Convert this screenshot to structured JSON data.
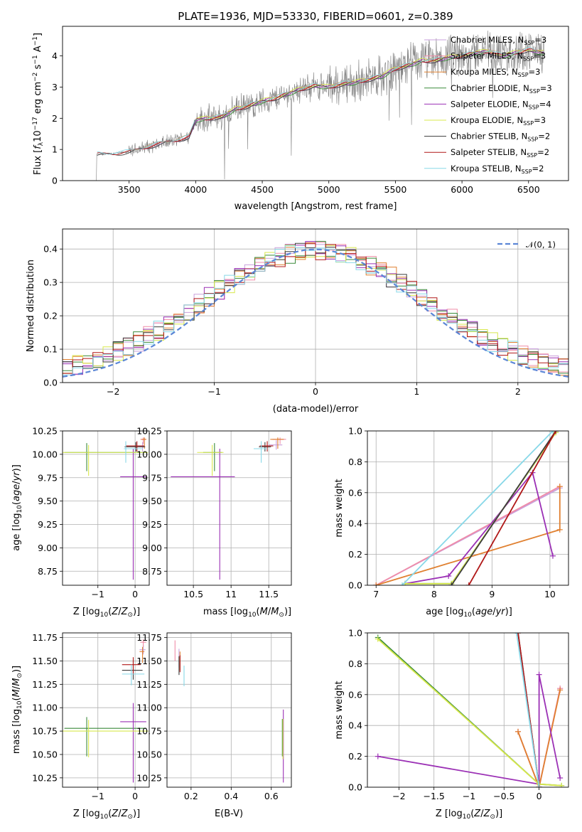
{
  "colors": {
    "Chabrier MILES": "#c9a0dc",
    "Salpeter MILES": "#f08ca8",
    "Kroupa MILES": "#e08030",
    "Chabrier ELODIE": "#3a8a3a",
    "Salpeter ELODIE": "#9b30b5",
    "Kroupa ELODIE": "#d8e84c",
    "Chabrier STELIB": "#3c3c3c",
    "Salpeter STELIB": "#b01818",
    "Kroupa STELIB": "#88d8e8",
    "normal": "#5b86d6",
    "grid": "#b0b0b0"
  },
  "chart_data": [
    {
      "id": "spectrum",
      "type": "line",
      "title": "PLATE=1936, MJD=53330, FIBERID=0601, z=0.389",
      "xlabel": "wavelength [Angstrom, rest frame]",
      "ylabel": "Flux [f_λ10^-17 erg cm^-2 s^-1 A^-1]",
      "xlim": [
        3000,
        6800
      ],
      "ylim": [
        0,
        4.95
      ],
      "xticks": [
        3500,
        4000,
        4500,
        5000,
        5500,
        6000,
        6500
      ],
      "yticks": [
        0,
        1,
        2,
        3,
        4
      ],
      "grid": false,
      "legend_position": "top-right",
      "legend": [
        {
          "name": "Chabrier MILES",
          "text": "Chabrier MILES, N",
          "sub": "SSP",
          "suffix": "=3"
        },
        {
          "name": "Salpeter MILES",
          "text": "Salpeter MILES, N",
          "sub": "SSP",
          "suffix": "=3"
        },
        {
          "name": "Kroupa MILES",
          "text": "Kroupa MILES, N",
          "sub": "SSP",
          "suffix": "=3"
        },
        {
          "name": "Chabrier ELODIE",
          "text": "Chabrier ELODIE, N",
          "sub": "SSP",
          "suffix": "=3"
        },
        {
          "name": "Salpeter ELODIE",
          "text": "Salpeter ELODIE, N",
          "sub": "SSP",
          "suffix": "=4"
        },
        {
          "name": "Kroupa ELODIE",
          "text": "Kroupa ELODIE, N",
          "sub": "SSP",
          "suffix": "=3"
        },
        {
          "name": "Chabrier STELIB",
          "text": "Chabrier STELIB, N",
          "sub": "SSP",
          "suffix": "=2"
        },
        {
          "name": "Salpeter STELIB",
          "text": "Salpeter STELIB, N",
          "sub": "SSP",
          "suffix": "=2"
        },
        {
          "name": "Kroupa STELIB",
          "text": "Kroupa STELIB, N",
          "sub": "SSP",
          "suffix": "=2"
        }
      ],
      "continuum": {
        "x": [
          3200,
          3250,
          3300,
          3400,
          3500,
          3600,
          3700,
          3800,
          3900,
          3950,
          4000,
          4100,
          4200,
          4300,
          4400,
          4500,
          4600,
          4700,
          4800,
          4900,
          5000,
          5100,
          5200,
          5300,
          5400,
          5500,
          5600,
          5700,
          5800,
          5900,
          6000,
          6100,
          6200,
          6300,
          6400,
          6500,
          6600
        ],
        "y": [
          0.85,
          0.85,
          0.85,
          0.88,
          0.92,
          1.05,
          1.15,
          1.25,
          1.35,
          1.4,
          1.95,
          2.0,
          2.05,
          2.3,
          2.4,
          2.55,
          2.65,
          2.8,
          2.95,
          3.05,
          3.0,
          3.1,
          3.15,
          3.25,
          3.35,
          3.6,
          3.7,
          3.85,
          3.85,
          3.95,
          4.0,
          4.1,
          4.15,
          4.0,
          4.1,
          4.2,
          4.1
        ]
      }
    },
    {
      "id": "residuals",
      "type": "line",
      "xlabel": "(data-model)/error",
      "ylabel": "Normed distribution",
      "xlim": [
        -2.5,
        2.5
      ],
      "ylim": [
        0,
        0.46
      ],
      "xticks": [
        -2,
        -1,
        0,
        1,
        2
      ],
      "yticks": [
        0.0,
        0.1,
        0.2,
        0.3,
        0.4
      ],
      "grid": true,
      "legend_position": "top-right",
      "legend": [
        {
          "name": "normal",
          "text": "𝒩(0, 1)"
        }
      ],
      "bin_width": 0.1
    },
    {
      "id": "age-vs-Z",
      "type": "scatter",
      "xlabel": "Z [log10(Z/Z⊙)]",
      "ylabel": "age  [log10(age/yr)]",
      "xlim": [
        -1.95,
        0.38
      ],
      "ylim": [
        8.6,
        10.25
      ],
      "xticks": [
        -1,
        0
      ],
      "yticks": [
        8.75,
        9.0,
        9.25,
        9.5,
        9.75,
        10.0,
        10.25
      ],
      "grid": true,
      "points": [
        {
          "model": "Chabrier MILES",
          "x": 0.2,
          "y": 10.08,
          "xerr": [
            0.1,
            0.05
          ],
          "yerr": [
            0.05,
            0.05
          ]
        },
        {
          "model": "Salpeter MILES",
          "x": 0.22,
          "y": 10.16,
          "xerr": [
            0.08,
            0.08
          ],
          "yerr": [
            0.05,
            0.02
          ]
        },
        {
          "model": "Kroupa MILES",
          "x": 0.25,
          "y": 10.16,
          "xerr": [
            0.08,
            0.05
          ],
          "yerr": [
            0.1,
            0.02
          ]
        },
        {
          "model": "Chabrier ELODIE",
          "x": -1.3,
          "y": 10.02,
          "xerr": [
            0.6,
            1.6
          ],
          "yerr": [
            0.2,
            0.1
          ]
        },
        {
          "model": "Salpeter ELODIE",
          "x": -0.05,
          "y": 9.76,
          "xerr": [
            0.35,
            0.35
          ],
          "yerr": [
            1.1,
            0.3
          ]
        },
        {
          "model": "Kroupa ELODIE",
          "x": -1.25,
          "y": 10.02,
          "xerr": [
            0.7,
            1.6
          ],
          "yerr": [
            0.25,
            0.08
          ]
        },
        {
          "model": "Chabrier STELIB",
          "x": 0.02,
          "y": 10.08,
          "xerr": [
            0.3,
            0.25
          ],
          "yerr": [
            0.05,
            0.05
          ]
        },
        {
          "model": "Salpeter STELIB",
          "x": 0.05,
          "y": 10.09,
          "xerr": [
            0.3,
            0.2
          ],
          "yerr": [
            0.06,
            0.05
          ]
        },
        {
          "model": "Kroupa STELIB",
          "x": -0.25,
          "y": 10.06,
          "xerr": [
            0.05,
            0.45
          ],
          "yerr": [
            0.15,
            0.08
          ]
        }
      ]
    },
    {
      "id": "age-vs-mass",
      "type": "scatter",
      "xlabel": "mass [log10(M/M⊙)]",
      "ylabel": "",
      "xlim": [
        10.15,
        11.8
      ],
      "ylim": [
        8.6,
        10.25
      ],
      "xticks": [
        10.5,
        11.0,
        11.5
      ],
      "yticks": [
        8.75,
        9.0,
        9.25,
        9.5,
        9.75,
        10.0,
        10.25
      ],
      "grid": true,
      "points": [
        {
          "model": "Chabrier MILES",
          "x": 11.6,
          "y": 10.1,
          "xerr": [
            0.1,
            0.08
          ],
          "yerr": [
            0.05,
            0.05
          ]
        },
        {
          "model": "Salpeter MILES",
          "x": 11.65,
          "y": 10.16,
          "xerr": [
            0.1,
            0.08
          ],
          "yerr": [
            0.05,
            0.02
          ]
        },
        {
          "model": "Kroupa MILES",
          "x": 11.62,
          "y": 10.16,
          "xerr": [
            0.1,
            0.08
          ],
          "yerr": [
            0.1,
            0.02
          ]
        },
        {
          "model": "Chabrier ELODIE",
          "x": 10.78,
          "y": 10.02,
          "xerr": [
            0.15,
            0.1
          ],
          "yerr": [
            0.2,
            0.1
          ]
        },
        {
          "model": "Salpeter ELODIE",
          "x": 10.85,
          "y": 9.76,
          "xerr": [
            0.65,
            0.2
          ],
          "yerr": [
            1.1,
            0.3
          ]
        },
        {
          "model": "Kroupa ELODIE",
          "x": 10.75,
          "y": 10.02,
          "xerr": [
            0.2,
            0.15
          ],
          "yerr": [
            0.25,
            0.08
          ]
        },
        {
          "model": "Chabrier STELIB",
          "x": 11.45,
          "y": 10.08,
          "xerr": [
            0.08,
            0.08
          ],
          "yerr": [
            0.05,
            0.05
          ]
        },
        {
          "model": "Salpeter STELIB",
          "x": 11.48,
          "y": 10.09,
          "xerr": [
            0.1,
            0.08
          ],
          "yerr": [
            0.06,
            0.05
          ]
        },
        {
          "model": "Kroupa STELIB",
          "x": 11.4,
          "y": 10.06,
          "xerr": [
            0.1,
            0.08
          ],
          "yerr": [
            0.15,
            0.08
          ]
        }
      ]
    },
    {
      "id": "weight-vs-age",
      "type": "line",
      "xlabel": "age  [log10(age/yr)]",
      "ylabel": "mass weight",
      "xlim": [
        6.85,
        10.32
      ],
      "ylim": [
        0,
        1.0
      ],
      "xticks": [
        7,
        8,
        9,
        10
      ],
      "yticks": [
        0.0,
        0.2,
        0.4,
        0.6,
        0.8,
        1.0
      ],
      "grid": true,
      "series": [
        {
          "model": "Chabrier MILES",
          "x": [
            7.0,
            10.17
          ],
          "y": [
            0.0,
            0.63
          ]
        },
        {
          "model": "Salpeter MILES",
          "x": [
            7.0,
            10.17
          ],
          "y": [
            0.0,
            0.64
          ]
        },
        {
          "model": "Kroupa MILES",
          "x": [
            7.0,
            10.17,
            10.17
          ],
          "y": [
            0.0,
            0.36,
            0.64
          ]
        },
        {
          "model": "Chabrier ELODIE",
          "x": [
            7.5,
            8.3,
            10.1
          ],
          "y": [
            0.01,
            0.01,
            0.99
          ]
        },
        {
          "model": "Salpeter ELODIE",
          "x": [
            7.5,
            8.25,
            9.7,
            10.05
          ],
          "y": [
            0.01,
            0.06,
            0.73,
            0.19
          ]
        },
        {
          "model": "Kroupa ELODIE",
          "x": [
            7.5,
            8.3,
            10.1
          ],
          "y": [
            0.01,
            0.01,
            0.99
          ]
        },
        {
          "model": "Chabrier STELIB",
          "x": [
            8.3,
            10.1
          ],
          "y": [
            0.0,
            1.0
          ]
        },
        {
          "model": "Salpeter STELIB",
          "x": [
            8.6,
            10.1
          ],
          "y": [
            0.0,
            1.0
          ]
        },
        {
          "model": "Kroupa STELIB",
          "x": [
            7.45,
            10.05
          ],
          "y": [
            0.0,
            1.0
          ]
        }
      ]
    },
    {
      "id": "mass-vs-Z",
      "type": "scatter",
      "xlabel": "Z [log10(Z/Z⊙)]",
      "ylabel": "mass [log10(M/M⊙)]",
      "xlim": [
        -1.95,
        0.38
      ],
      "ylim": [
        10.15,
        11.8
      ],
      "xticks": [
        -1,
        0
      ],
      "yticks": [
        10.25,
        10.5,
        10.75,
        11.0,
        11.25,
        11.5,
        11.75
      ],
      "grid": true,
      "points": [
        {
          "model": "Chabrier MILES",
          "x": 0.22,
          "y": 11.62,
          "xerr": [
            0.1,
            0.06
          ],
          "yerr": [
            0.05,
            0.05
          ]
        },
        {
          "model": "Salpeter MILES",
          "x": 0.22,
          "y": 11.7,
          "xerr": [
            0.08,
            0.08
          ],
          "yerr": [
            0.05,
            0.03
          ]
        },
        {
          "model": "Kroupa MILES",
          "x": 0.2,
          "y": 11.6,
          "xerr": [
            0.08,
            0.05
          ],
          "yerr": [
            0.12,
            0.05
          ]
        },
        {
          "model": "Chabrier ELODIE",
          "x": -1.3,
          "y": 10.78,
          "xerr": [
            0.6,
            1.6
          ],
          "yerr": [
            0.3,
            0.12
          ]
        },
        {
          "model": "Salpeter ELODIE",
          "x": -0.05,
          "y": 10.85,
          "xerr": [
            0.35,
            0.35
          ],
          "yerr": [
            0.65,
            0.2
          ]
        },
        {
          "model": "Kroupa ELODIE",
          "x": -1.25,
          "y": 10.75,
          "xerr": [
            0.7,
            1.6
          ],
          "yerr": [
            0.28,
            0.12
          ]
        },
        {
          "model": "Chabrier STELIB",
          "x": -0.05,
          "y": 11.4,
          "xerr": [
            0.3,
            0.25
          ],
          "yerr": [
            0.1,
            0.1
          ]
        },
        {
          "model": "Salpeter STELIB",
          "x": -0.05,
          "y": 11.46,
          "xerr": [
            0.3,
            0.2
          ],
          "yerr": [
            0.1,
            0.08
          ]
        },
        {
          "model": "Kroupa STELIB",
          "x": -0.1,
          "y": 11.36,
          "xerr": [
            0.25,
            0.35
          ],
          "yerr": [
            0.12,
            0.1
          ]
        }
      ]
    },
    {
      "id": "mass-vs-ebv",
      "type": "scatter",
      "xlabel": "E(B-V)",
      "ylabel": "",
      "xlim": [
        0.08,
        0.7
      ],
      "ylim": [
        10.15,
        11.8
      ],
      "xticks": [
        0.2,
        0.4,
        0.6
      ],
      "yticks": [
        10.25,
        10.5,
        10.75,
        11.0,
        11.25,
        11.5,
        11.75
      ],
      "grid": true,
      "points": [
        {
          "model": "Chabrier MILES",
          "x": 0.14,
          "y": 11.55,
          "xerr": [
            0.0,
            0.0
          ],
          "yerr": [
            0.12,
            0.08
          ]
        },
        {
          "model": "Salpeter MILES",
          "x": 0.12,
          "y": 11.6,
          "xerr": [
            0.0,
            0.0
          ],
          "yerr": [
            0.1,
            0.12
          ]
        },
        {
          "model": "Kroupa MILES",
          "x": 0.145,
          "y": 11.5,
          "xerr": [
            0.0,
            0.0
          ],
          "yerr": [
            0.1,
            0.1
          ]
        },
        {
          "model": "Chabrier ELODIE",
          "x": 0.655,
          "y": 10.78,
          "xerr": [
            0.0,
            0.0
          ],
          "yerr": [
            0.3,
            0.1
          ]
        },
        {
          "model": "Salpeter ELODIE",
          "x": 0.66,
          "y": 10.6,
          "xerr": [
            0.0,
            0.0
          ],
          "yerr": [
            0.4,
            0.38
          ]
        },
        {
          "model": "Kroupa ELODIE",
          "x": 0.658,
          "y": 10.7,
          "xerr": [
            0.0,
            0.0
          ],
          "yerr": [
            0.25,
            0.18
          ]
        },
        {
          "model": "Chabrier STELIB",
          "x": 0.14,
          "y": 11.45,
          "xerr": [
            0.0,
            0.0
          ],
          "yerr": [
            0.1,
            0.1
          ]
        },
        {
          "model": "Salpeter STELIB",
          "x": 0.145,
          "y": 11.48,
          "xerr": [
            0.0,
            0.0
          ],
          "yerr": [
            0.1,
            0.08
          ]
        },
        {
          "model": "Kroupa STELIB",
          "x": 0.165,
          "y": 11.35,
          "xerr": [
            0.0,
            0.0
          ],
          "yerr": [
            0.12,
            0.1
          ]
        }
      ]
    },
    {
      "id": "weight-vs-Z",
      "type": "line",
      "xlabel": "Z [log10(Z/Z⊙)]",
      "ylabel": "mass weight",
      "xlim": [
        -2.45,
        0.42
      ],
      "ylim": [
        0,
        1.0
      ],
      "xticks": [
        -2.0,
        -1.5,
        -1.0,
        -0.5,
        0.0
      ],
      "yticks": [
        0.0,
        0.2,
        0.4,
        0.6,
        0.8,
        1.0
      ],
      "grid": true,
      "series": [
        {
          "model": "Chabrier MILES",
          "x": [
            -0.3,
            0.0,
            0.3
          ],
          "y": [
            0.36,
            0.0,
            0.64
          ]
        },
        {
          "model": "Salpeter MILES",
          "x": [
            -0.3,
            0.0,
            0.3
          ],
          "y": [
            0.36,
            0.0,
            0.64
          ]
        },
        {
          "model": "Kroupa MILES",
          "x": [
            -0.3,
            0.0,
            0.3
          ],
          "y": [
            0.36,
            0.0,
            0.63
          ]
        },
        {
          "model": "Chabrier ELODIE",
          "x": [
            -2.3,
            0.0,
            0.32
          ],
          "y": [
            0.97,
            0.02,
            0.01
          ]
        },
        {
          "model": "Salpeter ELODIE",
          "x": [
            -2.3,
            0.0,
            0.0,
            0.3
          ],
          "y": [
            0.2,
            0.02,
            0.73,
            0.06
          ]
        },
        {
          "model": "Kroupa ELODIE",
          "x": [
            -2.3,
            0.0,
            0.32
          ],
          "y": [
            0.96,
            0.02,
            0.01
          ]
        },
        {
          "model": "Chabrier STELIB",
          "x": [
            -0.3,
            0.0
          ],
          "y": [
            1.0,
            0.0
          ]
        },
        {
          "model": "Salpeter STELIB",
          "x": [
            -0.3,
            0.0
          ],
          "y": [
            1.0,
            0.0
          ]
        },
        {
          "model": "Kroupa STELIB",
          "x": [
            -0.32,
            0.0
          ],
          "y": [
            1.0,
            0.0
          ]
        }
      ]
    }
  ]
}
